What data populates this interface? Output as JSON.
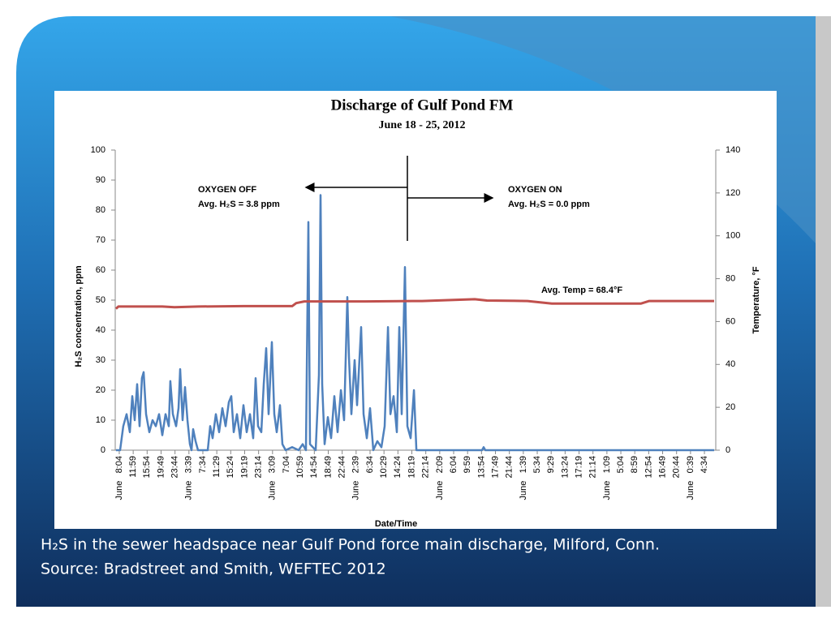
{
  "chart_data": {
    "type": "line",
    "title": "Discharge of Gulf Pond FM",
    "subtitle": "June 18 - 25, 2012",
    "x_label": "Date/Time",
    "y_label": "H₂S concentration, ppm",
    "y2_label": "Temperature, °F",
    "xlim": [
      -68,
      10061
    ],
    "xticks": [
      {
        "value": 0,
        "label": "June   8:04"
      },
      {
        "value": 235,
        "label": "11:59"
      },
      {
        "value": 470,
        "label": "15:54"
      },
      {
        "value": 705,
        "label": "19:49"
      },
      {
        "value": 940,
        "label": "23:44"
      },
      {
        "value": 1175,
        "label": "June   3:39"
      },
      {
        "value": 1410,
        "label": "7:34"
      },
      {
        "value": 1645,
        "label": "11:29"
      },
      {
        "value": 1880,
        "label": "15:24"
      },
      {
        "value": 2115,
        "label": "19:19"
      },
      {
        "value": 2350,
        "label": "23:14"
      },
      {
        "value": 2585,
        "label": "June   3:09"
      },
      {
        "value": 2820,
        "label": "7:04"
      },
      {
        "value": 3055,
        "label": "10:59"
      },
      {
        "value": 3290,
        "label": "14:54"
      },
      {
        "value": 3525,
        "label": "18:49"
      },
      {
        "value": 3760,
        "label": "22:44"
      },
      {
        "value": 3995,
        "label": "June   2:39"
      },
      {
        "value": 4230,
        "label": "6:34"
      },
      {
        "value": 4465,
        "label": "10:29"
      },
      {
        "value": 4700,
        "label": "14:24"
      },
      {
        "value": 4935,
        "label": "18:19"
      },
      {
        "value": 5170,
        "label": "22:14"
      },
      {
        "value": 5405,
        "label": "June   2:09"
      },
      {
        "value": 5640,
        "label": "6:04"
      },
      {
        "value": 5875,
        "label": "9:59"
      },
      {
        "value": 6110,
        "label": "13:54"
      },
      {
        "value": 6345,
        "label": "17:49"
      },
      {
        "value": 6580,
        "label": "21:44"
      },
      {
        "value": 6815,
        "label": "June   1:39"
      },
      {
        "value": 7050,
        "label": "5:34"
      },
      {
        "value": 7285,
        "label": "9:29"
      },
      {
        "value": 7520,
        "label": "13:24"
      },
      {
        "value": 7755,
        "label": "17:19"
      },
      {
        "value": 7990,
        "label": "21:14"
      },
      {
        "value": 8225,
        "label": "June   1:09"
      },
      {
        "value": 8460,
        "label": "5:04"
      },
      {
        "value": 8695,
        "label": "8:59"
      },
      {
        "value": 8930,
        "label": "12:54"
      },
      {
        "value": 9165,
        "label": "16:49"
      },
      {
        "value": 9400,
        "label": "20:44"
      },
      {
        "value": 9635,
        "label": "June   0:39"
      },
      {
        "value": 9870,
        "label": "4:34"
      }
    ],
    "ylim": [
      0,
      100
    ],
    "yticks": [
      0,
      10,
      20,
      30,
      40,
      50,
      60,
      70,
      80,
      90,
      100
    ],
    "y2lim": [
      0,
      140
    ],
    "y2ticks": [
      0,
      20,
      40,
      60,
      80,
      100,
      120,
      140
    ],
    "series": [
      {
        "color": "#4f81bd",
        "x": [
          -55,
          14,
          68,
          123,
          178,
          219,
          260,
          301,
          342,
          383,
          411,
          452,
          507,
          561,
          616,
          671,
          726,
          780,
          835,
          862,
          904,
          958,
          999,
          1027,
          1068,
          1109,
          1150,
          1191,
          1218,
          1246,
          1287,
          1328,
          1492,
          1533,
          1574,
          1629,
          1684,
          1739,
          1793,
          1848,
          1889,
          1930,
          1985,
          2040,
          2095,
          2149,
          2204,
          2259,
          2300,
          2341,
          2396,
          2437,
          2478,
          2519,
          2574,
          2615,
          2656,
          2711,
          2752,
          2806,
          2916,
          3025,
          3094,
          3149,
          3190,
          3217,
          3313,
          3368,
          3395,
          3423,
          3464,
          3518,
          3573,
          3628,
          3683,
          3738,
          3792,
          3847,
          3874,
          3915,
          3970,
          4011,
          4080,
          4121,
          4175,
          4230,
          4285,
          4353,
          4422,
          4477,
          4532,
          4573,
          4627,
          4682,
          4723,
          4764,
          4819,
          4860,
          4915,
          4970,
          5011,
          6119,
          6146,
          6174,
          10034
        ],
        "values": [
          0,
          0,
          8,
          12,
          6,
          18,
          10,
          22,
          8,
          24,
          26,
          12,
          6,
          10,
          8,
          12,
          5,
          12,
          8,
          23,
          12,
          8,
          14,
          27,
          10,
          21,
          10,
          2,
          0,
          7,
          3,
          0,
          0,
          8,
          4,
          12,
          6,
          14,
          8,
          16,
          18,
          6,
          12,
          4,
          15,
          6,
          12,
          4,
          24,
          8,
          6,
          22,
          34,
          12,
          36,
          12,
          6,
          15,
          2,
          0,
          1,
          0,
          2,
          0,
          76,
          2,
          0,
          25,
          85,
          22,
          2,
          11,
          4,
          18,
          6,
          20,
          10,
          51,
          31,
          12,
          30,
          15,
          41,
          12,
          4,
          14,
          0,
          3,
          1,
          8,
          41,
          12,
          18,
          6,
          41,
          12,
          61,
          8,
          4,
          20,
          0,
          0,
          1,
          0,
          0
        ]
      },
      {
        "color": "#c0504d",
        "axis": "y2",
        "x": [
          -55,
          -14,
          41,
          726,
          931,
          1342,
          2095,
          2916,
          2984,
          3121,
          4148,
          5106,
          5996,
          6201,
          6886,
          7296,
          8802,
          8939,
          10034
        ],
        "values": [
          66,
          67,
          67,
          67,
          66.7,
          67,
          67.2,
          67.2,
          68.6,
          69.4,
          69.4,
          69.6,
          70.4,
          69.8,
          69.6,
          68.4,
          68.4,
          69.6,
          69.6
        ]
      }
    ],
    "annotations": [
      "OXYGEN OFF",
      "Avg. H₂S = 3.8 ppm",
      "OXYGEN ON",
      "Avg. H₂S = 0.0 ppm",
      "Avg. Temp = 68.4°F"
    ]
  },
  "caption": [
    "H₂S in the sewer headspace near Gulf Pond force main discharge, Milford, Conn.",
    "Source: Bradstreet and Smith, WEFTEC 2012"
  ]
}
